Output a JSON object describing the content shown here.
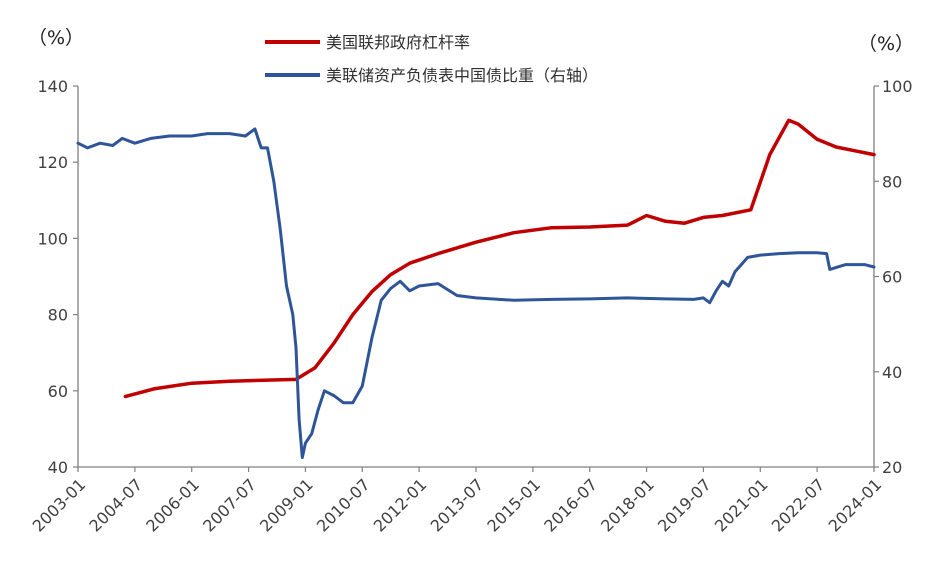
{
  "chart_data": {
    "type": "line",
    "left_unit": "（%）",
    "right_unit": "（%）",
    "y_left": {
      "min": 40,
      "max": 140,
      "ticks": [
        40,
        60,
        80,
        100,
        120,
        140
      ]
    },
    "y_right": {
      "min": 20,
      "max": 100,
      "ticks": [
        20,
        40,
        60,
        80,
        100
      ]
    },
    "x_range": [
      "2003-01",
      "2024-01"
    ],
    "x_ticks": [
      "2003-01",
      "2004-07",
      "2006-01",
      "2007-07",
      "2009-01",
      "2010-07",
      "2012-01",
      "2013-07",
      "2015-01",
      "2016-07",
      "2018-01",
      "2019-07",
      "2021-01",
      "2022-07",
      "2024-01"
    ],
    "grid": false,
    "legend_position": "top-center",
    "series": [
      {
        "name": "美国联邦政府杠杆率",
        "axis": "left",
        "color": "#c00000",
        "points": [
          [
            "2004-04",
            58.5
          ],
          [
            "2005-01",
            60.5
          ],
          [
            "2006-01",
            62.0
          ],
          [
            "2007-01",
            62.5
          ],
          [
            "2008-01",
            62.8
          ],
          [
            "2008-10",
            63.0
          ],
          [
            "2009-04",
            66.0
          ],
          [
            "2009-10",
            72.5
          ],
          [
            "2010-04",
            80.0
          ],
          [
            "2010-10",
            86.0
          ],
          [
            "2011-04",
            90.5
          ],
          [
            "2011-10",
            93.5
          ],
          [
            "2012-07",
            96.0
          ],
          [
            "2013-07",
            99.0
          ],
          [
            "2014-07",
            101.5
          ],
          [
            "2015-07",
            102.8
          ],
          [
            "2016-07",
            103.0
          ],
          [
            "2017-07",
            103.5
          ],
          [
            "2018-01",
            106.0
          ],
          [
            "2018-07",
            104.5
          ],
          [
            "2019-01",
            104.0
          ],
          [
            "2019-07",
            105.5
          ],
          [
            "2020-01",
            106.0
          ],
          [
            "2020-10",
            107.5
          ],
          [
            "2021-04",
            122.0
          ],
          [
            "2021-10",
            131.0
          ],
          [
            "2022-01",
            130.0
          ],
          [
            "2022-07",
            126.0
          ],
          [
            "2023-01",
            124.0
          ],
          [
            "2023-07",
            123.0
          ],
          [
            "2024-01",
            122.0
          ]
        ]
      },
      {
        "name": "美联储资产负债表中国债比重（右轴）",
        "axis": "right",
        "color": "#2e5597",
        "points": [
          [
            "2003-01",
            88
          ],
          [
            "2003-04",
            87
          ],
          [
            "2003-08",
            88
          ],
          [
            "2003-12",
            87.5
          ],
          [
            "2004-03",
            89
          ],
          [
            "2004-07",
            88
          ],
          [
            "2004-12",
            89
          ],
          [
            "2005-06",
            89.5
          ],
          [
            "2006-01",
            89.5
          ],
          [
            "2006-06",
            90
          ],
          [
            "2007-01",
            90
          ],
          [
            "2007-06",
            89.5
          ],
          [
            "2007-09",
            91
          ],
          [
            "2007-11",
            87
          ],
          [
            "2008-01",
            87
          ],
          [
            "2008-03",
            80
          ],
          [
            "2008-05",
            70
          ],
          [
            "2008-07",
            58
          ],
          [
            "2008-09",
            52
          ],
          [
            "2008-10",
            45
          ],
          [
            "2008-11",
            30
          ],
          [
            "2008-12",
            22
          ],
          [
            "2009-01",
            25
          ],
          [
            "2009-03",
            27
          ],
          [
            "2009-05",
            32
          ],
          [
            "2009-07",
            36
          ],
          [
            "2009-10",
            35
          ],
          [
            "2010-01",
            33.5
          ],
          [
            "2010-04",
            33.5
          ],
          [
            "2010-07",
            37
          ],
          [
            "2010-10",
            47
          ],
          [
            "2011-01",
            55
          ],
          [
            "2011-04",
            57.5
          ],
          [
            "2011-07",
            59
          ],
          [
            "2011-10",
            57
          ],
          [
            "2012-01",
            58
          ],
          [
            "2012-07",
            58.5
          ],
          [
            "2013-01",
            56
          ],
          [
            "2013-07",
            55.5
          ],
          [
            "2014-07",
            55
          ],
          [
            "2015-07",
            55.2
          ],
          [
            "2016-07",
            55.3
          ],
          [
            "2017-07",
            55.5
          ],
          [
            "2018-07",
            55.3
          ],
          [
            "2019-04",
            55.2
          ],
          [
            "2019-07",
            55.5
          ],
          [
            "2019-09",
            54.5
          ],
          [
            "2019-11",
            57
          ],
          [
            "2020-01",
            59
          ],
          [
            "2020-03",
            58
          ],
          [
            "2020-05",
            61
          ],
          [
            "2020-09",
            64
          ],
          [
            "2021-01",
            64.5
          ],
          [
            "2021-07",
            64.8
          ],
          [
            "2022-01",
            65
          ],
          [
            "2022-07",
            65
          ],
          [
            "2022-10",
            64.8
          ],
          [
            "2022-11",
            61.5
          ],
          [
            "2023-04",
            62.5
          ],
          [
            "2023-10",
            62.5
          ],
          [
            "2024-01",
            62
          ]
        ]
      }
    ]
  }
}
